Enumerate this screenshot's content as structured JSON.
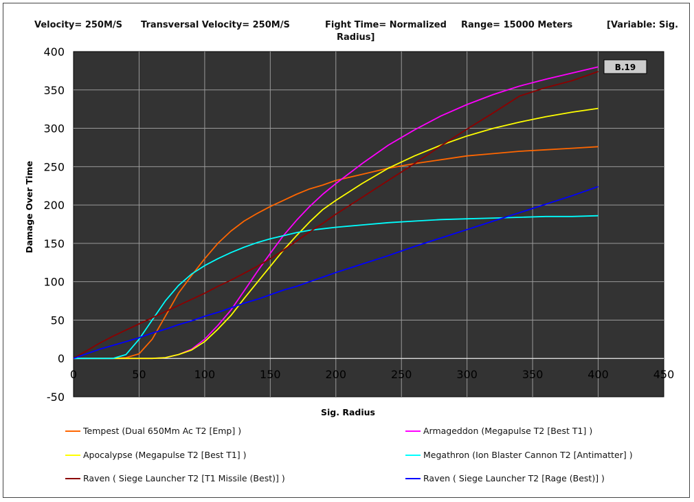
{
  "header": {
    "velocity": "Velocity= 250M/S",
    "transversal": "Transversal Velocity= 250M/S",
    "fight_time_1": "Fight Time= Normalized",
    "fight_time_2": "Radius]",
    "range": "Range= 15000 Meters",
    "variable": "[Variable: Sig."
  },
  "chart_data": {
    "type": "line",
    "title": "",
    "xlabel": "Sig. Radius",
    "ylabel": "Damage Over Time",
    "xlim": [
      0,
      450
    ],
    "ylim": [
      -50,
      400
    ],
    "xticks": [
      0,
      50,
      100,
      150,
      200,
      250,
      300,
      350,
      400,
      450
    ],
    "yticks": [
      -50,
      0,
      50,
      100,
      150,
      200,
      250,
      300,
      350,
      400
    ],
    "grid": true,
    "plot_background": "#333333",
    "annotation": "B.19",
    "x": [
      0,
      20,
      30,
      40,
      50,
      60,
      70,
      80,
      90,
      100,
      110,
      120,
      130,
      140,
      150,
      160,
      170,
      180,
      190,
      200,
      220,
      240,
      260,
      280,
      300,
      320,
      340,
      360,
      380,
      400
    ],
    "series": [
      {
        "name": "Tempest (Dual 650Mm Ac T2 [Emp] )",
        "color": "#ff6600",
        "values": [
          0,
          0,
          0,
          1,
          6,
          25,
          55,
          85,
          108,
          130,
          150,
          166,
          179,
          189,
          198,
          206,
          214,
          221,
          226,
          232,
          240,
          248,
          254,
          259,
          264,
          267,
          270,
          272,
          274,
          276
        ]
      },
      {
        "name": "Armageddon (Megapulse T2 [Best T1] )",
        "color": "#ff00ff",
        "values": [
          0,
          0,
          0,
          0,
          0,
          0,
          1,
          5,
          12,
          25,
          43,
          63,
          88,
          113,
          137,
          160,
          180,
          198,
          214,
          228,
          254,
          278,
          298,
          316,
          331,
          344,
          355,
          364,
          372,
          380
        ]
      },
      {
        "name": "Apocalypse (Megapulse T2 [Best T1] )",
        "color": "#ffff00",
        "values": [
          0,
          0,
          0,
          0,
          0,
          0,
          1,
          5,
          11,
          22,
          38,
          56,
          78,
          99,
          120,
          141,
          160,
          178,
          194,
          206,
          228,
          248,
          264,
          278,
          290,
          300,
          308,
          315,
          321,
          326
        ]
      },
      {
        "name": "Megathron (Ion Blaster Cannon T2 [Antimatter] )",
        "color": "#00ffff",
        "values": [
          0,
          0,
          0,
          5,
          25,
          50,
          75,
          95,
          110,
          121,
          130,
          138,
          145,
          151,
          156,
          160,
          164,
          167,
          169,
          171,
          174,
          177,
          179,
          181,
          182,
          183,
          184,
          185,
          185,
          186
        ]
      },
      {
        "name": "Raven ( Siege Launcher T2 [T1 Missile (Best)] )",
        "color": "#8b0000",
        "values": [
          0,
          20,
          29,
          37,
          45,
          53,
          61,
          69,
          77,
          85,
          94,
          102,
          111,
          120,
          130,
          141,
          153,
          165,
          176,
          188,
          210,
          232,
          254,
          277,
          299,
          320,
          342,
          353,
          362,
          374
        ]
      },
      {
        "name": "Raven ( Siege Launcher T2 [Rage (Best)] )",
        "color": "#0000ff",
        "values": [
          0,
          12,
          17,
          22,
          27,
          33,
          38,
          44,
          49,
          55,
          60,
          66,
          72,
          77,
          83,
          89,
          94,
          100,
          106,
          112,
          123,
          134,
          146,
          157,
          168,
          179,
          190,
          201,
          212,
          224
        ]
      }
    ]
  },
  "legend": [
    {
      "label": "Tempest (Dual 650Mm Ac T2 [Emp] )",
      "color": "#ff6600"
    },
    {
      "label": "Armageddon (Megapulse T2 [Best T1] )",
      "color": "#ff00ff"
    },
    {
      "label": "Apocalypse (Megapulse T2 [Best T1] )",
      "color": "#ffff00"
    },
    {
      "label": "Megathron (Ion Blaster Cannon T2 [Antimatter] )",
      "color": "#00ffff"
    },
    {
      "label": "Raven ( Siege Launcher T2 [T1 Missile (Best)] )",
      "color": "#8b0000"
    },
    {
      "label": "Raven ( Siege Launcher T2 [Rage (Best)] )",
      "color": "#0000ff"
    }
  ]
}
